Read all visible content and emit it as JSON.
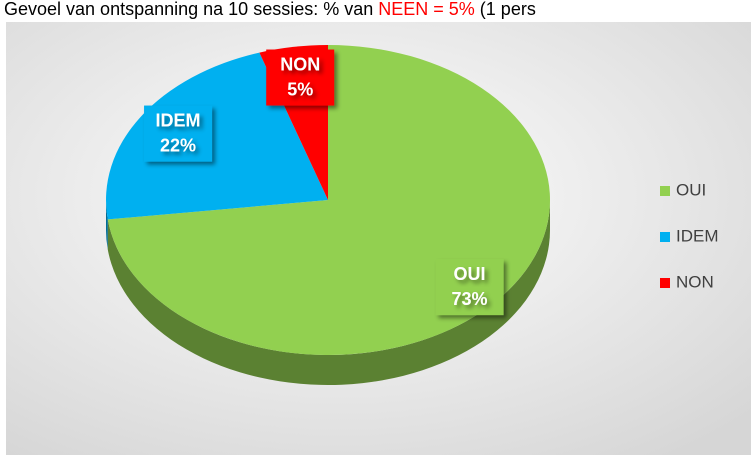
{
  "chart_data": {
    "type": "pie",
    "title": [
      "Gevoel van ontspanning na 10 sessies: % van ",
      "NEEN = 5%",
      " (1 pers"
    ],
    "title_colors": [
      "#000000",
      "#ff0000",
      "#000000"
    ],
    "categories": [
      "OUI",
      "IDEM",
      "NON"
    ],
    "values": [
      73,
      22,
      5
    ],
    "value_labels": [
      "73%",
      "22%",
      "5%"
    ],
    "colors": [
      "#92d050",
      "#00b0f0",
      "#ff0000"
    ],
    "legend": "right"
  }
}
